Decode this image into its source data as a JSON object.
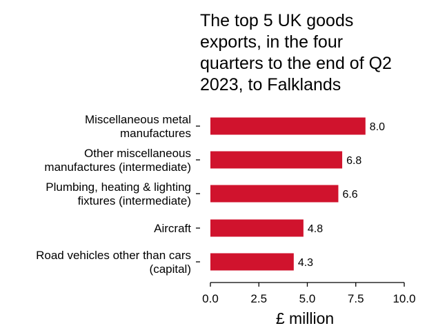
{
  "chart_data": {
    "type": "bar",
    "orientation": "horizontal",
    "title_lines": [
      "The top 5 UK goods",
      "exports, in the four",
      "quarters to the end of Q2",
      "2023, to Falklands"
    ],
    "categories": [
      [
        "Miscellaneous metal",
        "manufactures"
      ],
      [
        "Other miscellaneous",
        "manufactures (intermediate)"
      ],
      [
        "Plumbing, heating & lighting",
        "fixtures (intermediate)"
      ],
      [
        "Aircraft"
      ],
      [
        "Road vehicles other than cars",
        "(capital)"
      ]
    ],
    "values": [
      8.0,
      6.8,
      6.6,
      4.8,
      4.3
    ],
    "value_labels": [
      "8.0",
      "6.8",
      "6.6",
      "4.8",
      "4.3"
    ],
    "xlabel": "£ million",
    "xlim": [
      0,
      10
    ],
    "xticks": [
      0,
      2.5,
      5,
      7.5,
      10
    ],
    "xtick_labels": [
      "0.0",
      "2.5",
      "5.0",
      "7.5",
      "10.0"
    ],
    "grid": false,
    "colors": {
      "bar": "#d0132d"
    }
  }
}
